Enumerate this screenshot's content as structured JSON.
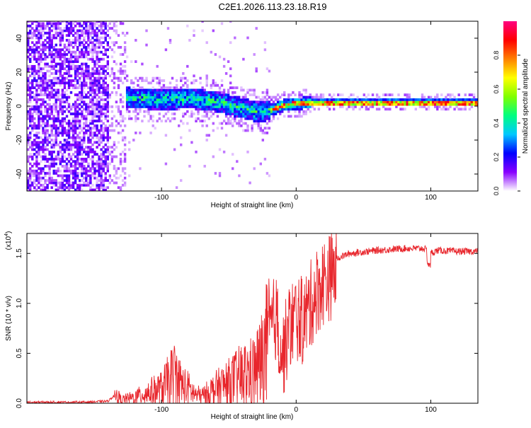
{
  "title": "C2E1.2026.113.23.18.R19",
  "chart_data": [
    {
      "type": "heatmap",
      "title": "C2E1.2026.113.23.18.R19",
      "xlabel": "Height of straight line (km)",
      "ylabel": "Frequency (Hz)",
      "xlim": [
        -200,
        135
      ],
      "ylim": [
        -50,
        50
      ],
      "xticks": [
        -100,
        0,
        100
      ],
      "xtick_labels": [
        "-100",
        "0",
        "100"
      ],
      "yticks": [
        -40,
        -20,
        0,
        20,
        40
      ],
      "ytick_labels": [
        "-40",
        "-20",
        "0",
        "20",
        "40"
      ],
      "colorbar": {
        "label": "Normalized spectral amplitude",
        "range": [
          0,
          1
        ],
        "ticks": [
          0.0,
          0.2,
          0.4,
          0.6,
          0.8
        ],
        "tick_labels": [
          "0.0",
          "0.2",
          "0.4",
          "0.6",
          "0.8"
        ],
        "colors": [
          "#ffffff",
          "#8800ff",
          "#0000ff",
          "#00c8ff",
          "#00ff80",
          "#80ff00",
          "#ffff00",
          "#ff8000",
          "#ff0000",
          "#ff0080"
        ]
      },
      "ridge": {
        "x": [
          -140,
          -120,
          -100,
          -80,
          -60,
          -40,
          -30,
          -20,
          -10,
          0,
          20,
          50,
          80,
          100,
          135
        ],
        "y": [
          5,
          4,
          3,
          4,
          2,
          -2,
          -4,
          -3,
          0,
          1,
          1.5,
          1.5,
          1.5,
          1.5,
          1.5
        ]
      }
    },
    {
      "type": "line",
      "xlabel": "Height of straight line (km)",
      "ylabel": "SNR (10 * v/v)",
      "scale_label": "(x10",
      "scale_exp": "4",
      "scale_close": ")",
      "xlim": [
        -200,
        135
      ],
      "ylim": [
        0,
        1.7
      ],
      "xticks": [
        -100,
        0,
        100
      ],
      "xtick_labels": [
        "-100",
        "0",
        "100"
      ],
      "yticks": [
        0,
        0.5,
        1.0,
        1.5
      ],
      "ytick_labels": [
        "0.0",
        "0.5",
        "1.0",
        "1.5"
      ],
      "color": "#e8262c",
      "series": [
        {
          "name": "SNR",
          "x": [
            -200,
            -160,
            -140,
            -133,
            -130,
            -120,
            -110,
            -100,
            -95,
            -90,
            -85,
            -80,
            -75,
            -70,
            -60,
            -50,
            -40,
            -35,
            -30,
            -25,
            -20,
            -15,
            -10,
            -5,
            0,
            5,
            10,
            15,
            20,
            30,
            40,
            60,
            80,
            95,
            100,
            105,
            120,
            135
          ],
          "y": [
            0.01,
            0.01,
            0.02,
            0.1,
            0.05,
            0.08,
            0.15,
            0.2,
            0.3,
            0.4,
            0.25,
            0.2,
            0.12,
            0.1,
            0.2,
            0.28,
            0.38,
            0.4,
            0.45,
            0.6,
            0.85,
            1.0,
            0.6,
            0.9,
            1.0,
            0.95,
            1.1,
            1.25,
            1.35,
            1.45,
            1.5,
            1.53,
            1.55,
            1.55,
            1.5,
            1.53,
            1.52,
            1.52
          ]
        }
      ]
    }
  ]
}
